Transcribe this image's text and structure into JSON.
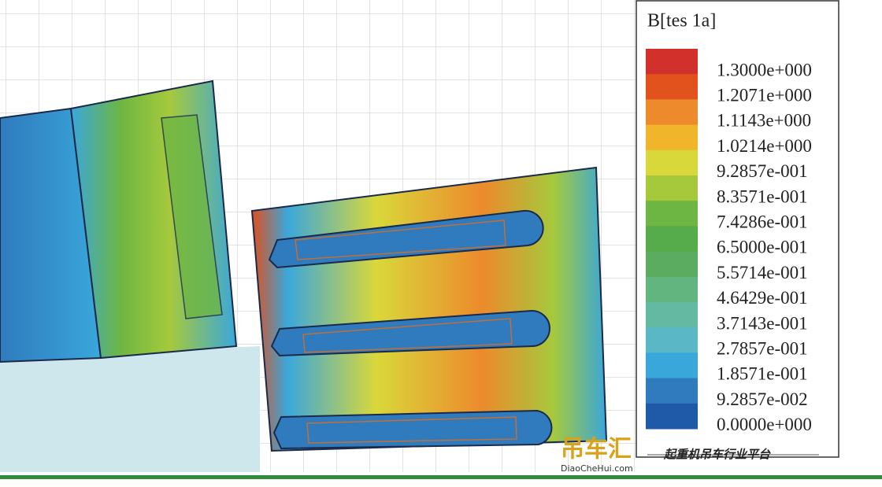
{
  "legend": {
    "title": "B[tes 1a]",
    "labels": [
      "1.3000e+000",
      "1.2071e+000",
      "1.1143e+000",
      "1.0214e+000",
      "9.2857e-001",
      "8.3571e-001",
      "7.4286e-001",
      "6.5000e-001",
      "5.5714e-001",
      "4.6429e-001",
      "3.7143e-001",
      "2.7857e-001",
      "1.8571e-001",
      "9.2857e-002",
      "0.0000e+000"
    ],
    "colors": [
      "#d2302a",
      "#e1521d",
      "#ec8a2c",
      "#f0b52b",
      "#d9d83a",
      "#a6c93c",
      "#6db643",
      "#56ab4a",
      "#5bac60",
      "#63b580",
      "#64b9a3",
      "#5ab7c6",
      "#3aa7db",
      "#2f7bbd",
      "#1e5aa8"
    ]
  },
  "watermark": {
    "brand": "吊车汇",
    "url": "DiaoCheHui.com",
    "slogan": "起重机吊车行业平台"
  }
}
